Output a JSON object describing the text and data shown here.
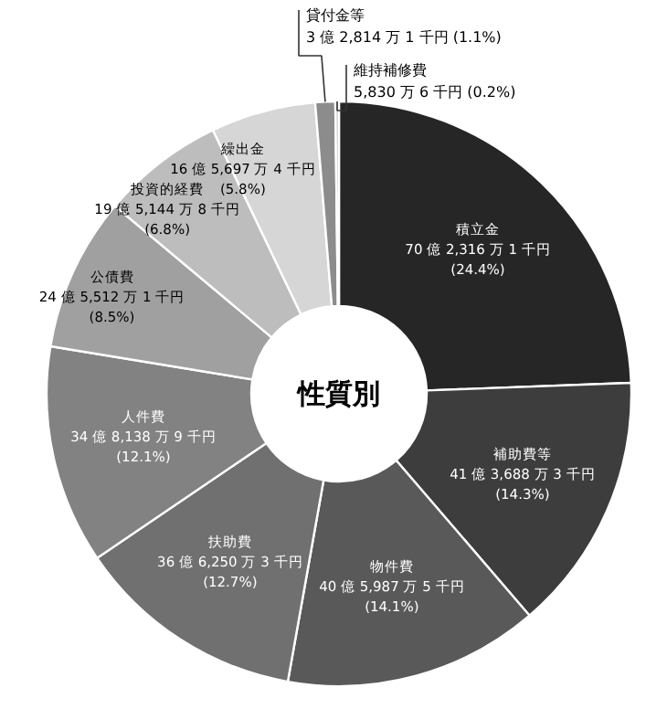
{
  "chart_data": {
    "type": "donut",
    "title": "性質別",
    "categories": [
      "積立金",
      "補助費等",
      "物件費",
      "扶助費",
      "人件費",
      "公債費",
      "投資的経費",
      "繰出金",
      "貸付金等",
      "維持補修費"
    ],
    "values": [
      24.4,
      14.3,
      14.1,
      12.7,
      12.1,
      8.5,
      6.8,
      5.8,
      1.1,
      0.2
    ],
    "value_labels": [
      "70 億 2,316 万 1 千円\n(24.4%)",
      "41 億 3,688 万 3 千円\n(14.3%)",
      "40 億 5,987 万 5 千円\n(14.1%)",
      "36 億 6,250 万 3 千円\n(12.7%)",
      "34 億 8,138 万 9 千円\n(12.1%)",
      "24 億 5,512 万 1 千円\n(8.5%)",
      "19 億 5,144 万 8 千円\n(6.8%)",
      "16 億 5,697 万 4 千円\n(5.8%)",
      "3 億 2,814 万 1 千円 (1.1%)",
      "5,830 万 6 千円 (0.2%)"
    ],
    "colors": [
      "#262626",
      "#3d3d3d",
      "#595959",
      "#707070",
      "#828282",
      "#a0a0a0",
      "#bdbdbd",
      "#d6d6d6",
      "#8c8c8c",
      "#cfcfcf"
    ]
  }
}
